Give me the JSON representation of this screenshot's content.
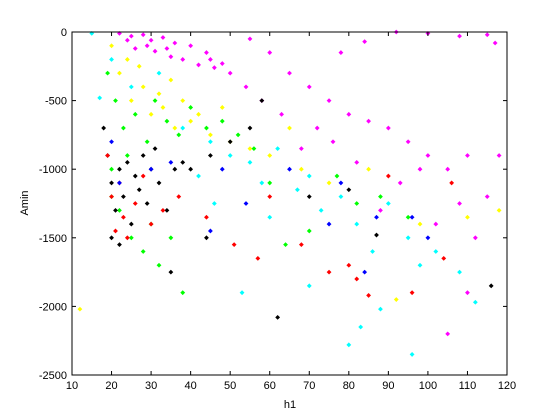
{
  "chart_data": {
    "type": "scatter",
    "xlabel": "h1",
    "ylabel": "Amin",
    "xlim": [
      10,
      120
    ],
    "ylim": [
      -2500,
      0
    ],
    "xticks": [
      10,
      20,
      30,
      40,
      50,
      60,
      70,
      80,
      90,
      100,
      110,
      120
    ],
    "yticks": [
      -2500,
      -2000,
      -1500,
      -1000,
      -500,
      0
    ],
    "grid": false,
    "series": [
      {
        "color": "#ff00ff",
        "x": [
          22,
          25,
          28,
          30,
          33,
          36,
          40,
          44,
          26,
          31,
          35,
          38,
          42,
          46,
          50,
          24,
          29,
          34,
          45,
          48,
          55,
          60,
          65,
          70,
          75,
          80,
          85,
          90,
          95,
          100,
          105,
          110,
          115,
          118,
          112,
          108,
          102,
          98,
          93,
          88,
          82,
          76,
          72,
          68,
          63,
          58,
          54,
          115,
          117,
          108,
          100,
          92,
          84,
          78,
          105,
          110
        ],
        "values": [
          -10,
          -30,
          -20,
          -60,
          -40,
          -80,
          -100,
          -150,
          -120,
          -140,
          -180,
          -200,
          -240,
          -260,
          -300,
          -60,
          -100,
          -120,
          -200,
          -230,
          -50,
          -150,
          -300,
          -400,
          -500,
          -600,
          -650,
          -700,
          -800,
          -900,
          -1000,
          -900,
          -1200,
          -900,
          -1500,
          -1250,
          -1400,
          -1000,
          -1100,
          -1300,
          -950,
          -800,
          -700,
          -850,
          -600,
          -500,
          -400,
          -20,
          -80,
          -30,
          -10,
          0,
          -70,
          -150,
          -2200,
          -1900
        ]
      },
      {
        "color": "#ffff00",
        "x": [
          20,
          22,
          25,
          28,
          30,
          33,
          36,
          40,
          45,
          50,
          24,
          27,
          32,
          38,
          42,
          55,
          60,
          68,
          75,
          85,
          12,
          92,
          118,
          110,
          98,
          65,
          48,
          35
        ],
        "values": [
          -100,
          -300,
          -500,
          -400,
          -600,
          -550,
          -700,
          -650,
          -750,
          -800,
          -200,
          -250,
          -450,
          -500,
          -600,
          -850,
          -900,
          -1000,
          -1100,
          -1000,
          -2020,
          -1950,
          -1300,
          -1350,
          -1400,
          -700,
          -550,
          -350
        ]
      },
      {
        "color": "#00ff00",
        "x": [
          19,
          21,
          23,
          26,
          29,
          31,
          34,
          37,
          40,
          44,
          48,
          52,
          56,
          20,
          22,
          25,
          28,
          30,
          35,
          32,
          38,
          60,
          64,
          70,
          77,
          82,
          88,
          95,
          20,
          24
        ],
        "values": [
          -300,
          -500,
          -700,
          -600,
          -800,
          -500,
          -650,
          -750,
          -550,
          -700,
          -650,
          -750,
          -850,
          -1000,
          -1300,
          -1500,
          -1600,
          -1400,
          -1500,
          -1700,
          -1900,
          -1100,
          -1550,
          -1450,
          -1050,
          -1250,
          -1200,
          -1350,
          -1200,
          -900
        ]
      },
      {
        "color": "#00ffff",
        "x": [
          15,
          17,
          20,
          25,
          32,
          38,
          45,
          50,
          55,
          58,
          62,
          67,
          70,
          73,
          78,
          82,
          86,
          90,
          95,
          98,
          53,
          70,
          80,
          83,
          88,
          96,
          112,
          102,
          108,
          60,
          46,
          42
        ],
        "values": [
          -10,
          -480,
          -200,
          -400,
          -300,
          -700,
          -800,
          -900,
          -950,
          -1100,
          -850,
          -1150,
          -1050,
          -1300,
          -1200,
          -1400,
          -1600,
          -1250,
          -1500,
          -1700,
          -1900,
          -1850,
          -2280,
          -2150,
          -2020,
          -2350,
          -1970,
          -1600,
          -1750,
          -1350,
          -1250,
          -1050
        ]
      },
      {
        "color": "#000000",
        "x": [
          18,
          19,
          20,
          21,
          22,
          23,
          24,
          25,
          26,
          27,
          28,
          29,
          30,
          31,
          32,
          34,
          36,
          38,
          40,
          45,
          50,
          55,
          58,
          20,
          22,
          35,
          44,
          62,
          87,
          116,
          80,
          70
        ],
        "values": [
          -700,
          -900,
          -1100,
          -1300,
          -1000,
          -1200,
          -950,
          -1400,
          -1050,
          -1150,
          -900,
          -1250,
          -1000,
          -850,
          -1100,
          -1300,
          -1000,
          -950,
          -1000,
          -900,
          -800,
          -700,
          -500,
          -1500,
          -1550,
          -1750,
          -1500,
          -2080,
          -1480,
          -1850,
          -1150,
          -1200
        ]
      },
      {
        "color": "#ff0000",
        "x": [
          19,
          20,
          21,
          22,
          23,
          24,
          26,
          28,
          30,
          33,
          37,
          44,
          51,
          57,
          68,
          75,
          80,
          85,
          90,
          96,
          104,
          106,
          82,
          60
        ],
        "values": [
          -900,
          -1200,
          -1450,
          -1100,
          -1350,
          -1500,
          -1250,
          -1050,
          -1400,
          -1300,
          -1200,
          -1350,
          -1550,
          -1650,
          -1550,
          -1750,
          -1700,
          -1920,
          -1050,
          -1900,
          -1650,
          -1100,
          -1800,
          -1200
        ]
      },
      {
        "color": "#0000ff",
        "x": [
          20,
          22,
          30,
          35,
          48,
          54,
          65,
          75,
          78,
          84,
          87,
          96,
          100,
          45
        ],
        "values": [
          -800,
          -1100,
          -1000,
          -950,
          -1000,
          -1250,
          -1000,
          -1400,
          -1100,
          -1750,
          -1350,
          -1350,
          -1500,
          -1450
        ]
      }
    ]
  }
}
